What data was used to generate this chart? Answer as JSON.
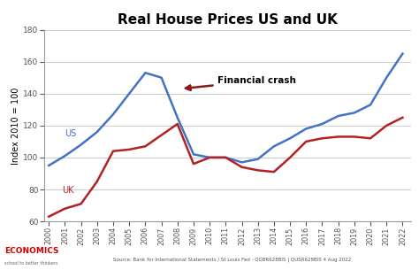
{
  "title": "Real House Prices US and UK",
  "ylabel": "Index 2010 = 100",
  "ylim": [
    60,
    180
  ],
  "yticks": [
    60,
    80,
    100,
    120,
    140,
    160,
    180
  ],
  "years": [
    2000,
    2001,
    2002,
    2003,
    2004,
    2005,
    2006,
    2007,
    2008,
    2009,
    2010,
    2011,
    2012,
    2013,
    2014,
    2015,
    2016,
    2017,
    2018,
    2019,
    2020,
    2021,
    2022
  ],
  "us_values": [
    95,
    101,
    108,
    116,
    127,
    140,
    153,
    150,
    125,
    102,
    100,
    100,
    97,
    99,
    107,
    112,
    118,
    121,
    126,
    128,
    133,
    150,
    165
  ],
  "uk_values": [
    63,
    68,
    71,
    85,
    104,
    105,
    107,
    114,
    121,
    96,
    100,
    100,
    94,
    92,
    91,
    100,
    110,
    112,
    113,
    113,
    112,
    120,
    125
  ],
  "us_color": "#4472C4",
  "uk_color": "#B22222",
  "background_color": "#FFFFFF",
  "grid_color": "#CCCCCC",
  "annotation_text": "Financial crash",
  "source_text": "Source: Bank for International Statements / St Louis Fed - QGBR628BIS | QUSR628BIS 4 Aug 2022",
  "title_fontsize": 11,
  "axis_fontsize": 6.5,
  "label_fontsize": 7
}
